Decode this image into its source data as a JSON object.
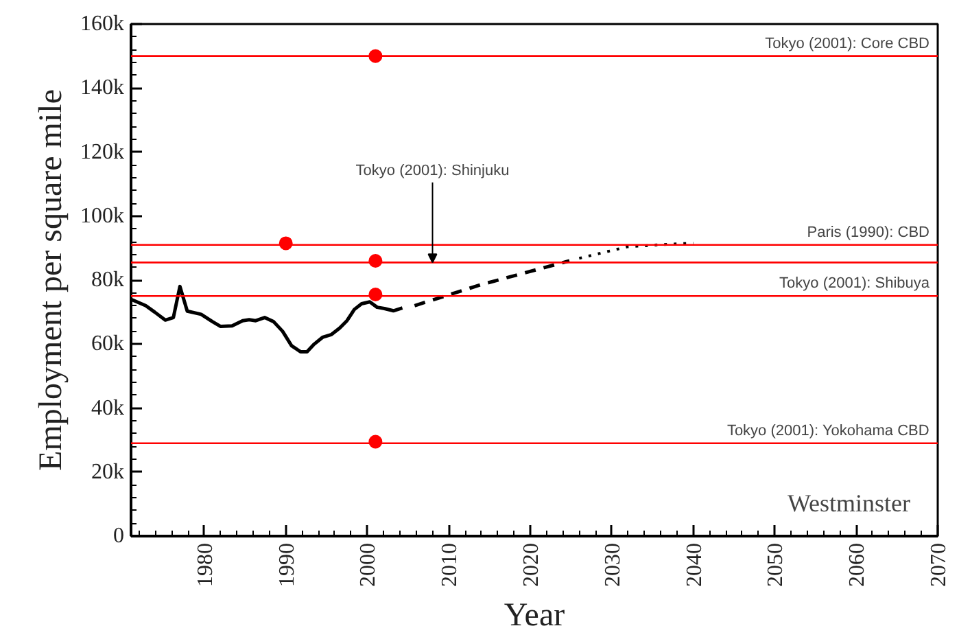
{
  "chart_data": {
    "type": "line",
    "xlabel": "Year",
    "ylabel": "Employment per square mile",
    "xlim": [
      1971,
      2070
    ],
    "ylim": [
      0,
      160000
    ],
    "xticks": [
      1980,
      1990,
      2000,
      2010,
      2020,
      2030,
      2040,
      2050,
      2060,
      2070
    ],
    "yticks": [
      {
        "value": 0,
        "label": "0"
      },
      {
        "value": 20000,
        "label": "20k"
      },
      {
        "value": 40000,
        "label": "40k"
      },
      {
        "value": 60000,
        "label": "60k"
      },
      {
        "value": 80000,
        "label": "80k"
      },
      {
        "value": 100000,
        "label": "100k"
      },
      {
        "value": 120000,
        "label": "120k"
      },
      {
        "value": 140000,
        "label": "140k"
      },
      {
        "value": 160000,
        "label": "160k"
      }
    ],
    "grid": false,
    "series": [
      {
        "color": "#000000",
        "line_style": "solid",
        "marker": "none",
        "x": [
          1971,
          1972.8,
          1973.9,
          1975.2,
          1976.2,
          1977,
          1977.9,
          1979.6,
          1981,
          1982,
          1983.4,
          1984.7,
          1985.5,
          1986.3,
          1987.4,
          1988.5,
          1989.6,
          1990.7,
          1991.8,
          1992.6,
          1993.4,
          1994.5,
          1995.6,
          1996.6,
          1997.5,
          1998.4,
          1999.3,
          2000.3,
          2001.2,
          2002.1,
          2003.2,
          2004.3
        ],
        "values": [
          74000,
          72000,
          70000,
          67500,
          68300,
          78000,
          70300,
          69300,
          67000,
          65500,
          65700,
          67300,
          67600,
          67300,
          68300,
          67000,
          64000,
          59500,
          57600,
          57600,
          59800,
          62100,
          63000,
          65000,
          67300,
          70800,
          72600,
          73200,
          71500,
          71100,
          70400,
          71300
        ]
      },
      {
        "color": "#000000",
        "line_style": "dashed",
        "marker": "none",
        "x": [
          2005.8,
          2014,
          2024.8
        ],
        "values": [
          72000,
          78600,
          86000
        ]
      },
      {
        "color": "#000000",
        "line_style": "dotted",
        "marker": "none",
        "x": [
          2026,
          2031.9,
          2038.4,
          2040
        ],
        "values": [
          86800,
          90400,
          91400,
          91500
        ]
      },
      {
        "type": "scatter",
        "color": "#ff0000",
        "marker": "circle",
        "x": [
          2001,
          1990,
          2001,
          2001,
          2001
        ],
        "values": [
          150000,
          91500,
          86000,
          75500,
          29500
        ]
      }
    ],
    "ref_lines": [
      {
        "axis": "y",
        "value": 150000,
        "label": "Tokyo (2001): Core CBD",
        "color": "#ff0000"
      },
      {
        "axis": "y",
        "value": 91000,
        "label": "Paris (1990): CBD",
        "color": "#ff0000"
      },
      {
        "axis": "y",
        "value": 85500,
        "color": "#ff0000"
      },
      {
        "axis": "y",
        "value": 75000,
        "label": "Tokyo (2001): Shibuya",
        "color": "#ff0000"
      },
      {
        "axis": "y",
        "value": 29000,
        "label": "Tokyo (2001): Yokohama CBD",
        "color": "#ff0000"
      }
    ],
    "annotations": [
      {
        "text": "Tokyo (2001): Shinjuku",
        "x": 2008,
        "y": 85500
      },
      "Westminster"
    ]
  }
}
